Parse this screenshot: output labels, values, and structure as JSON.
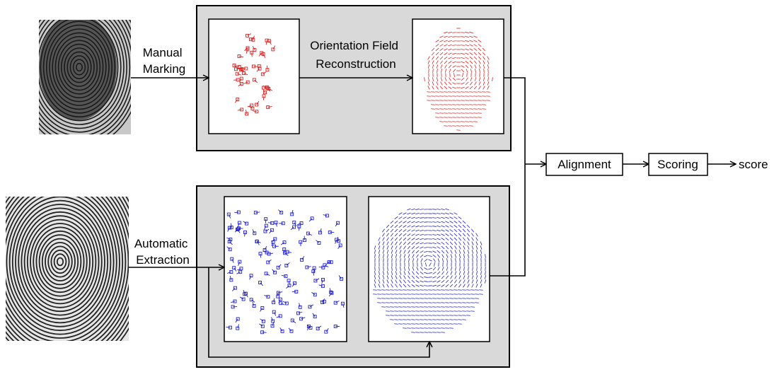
{
  "edges": [
    {
      "label": [
        "Manual",
        "Marking"
      ]
    },
    {
      "label": [
        "Orientation Field",
        "Reconstruction"
      ]
    },
    {
      "label": [
        "Automatic",
        "Extraction"
      ]
    }
  ],
  "nodes": [
    {
      "label": "Alignment"
    },
    {
      "label": "Scoring"
    }
  ],
  "output": {
    "label": "score"
  }
}
